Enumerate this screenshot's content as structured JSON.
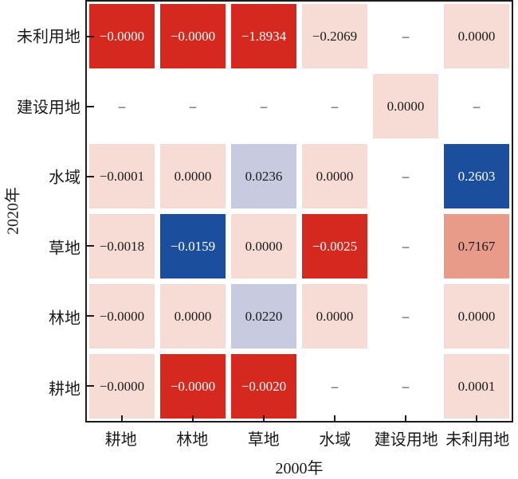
{
  "palette": {
    "strong_red": "#d5281e",
    "light_pink": "#f6dcd4",
    "lavender": "#c8cadf",
    "dark_blue": "#1b4f9e",
    "salmon": "#e99b8a",
    "empty_white": "#ffffff",
    "text_dark": "#1a1a1a",
    "text_light": "#ffffff",
    "axis_line": "#1c1c1c"
  },
  "chart_data": {
    "type": "heatmap",
    "title": "",
    "xlabel": "2000年",
    "ylabel": "2020年",
    "x_categories": [
      "耕地",
      "林地",
      "草地",
      "水域",
      "建设用地",
      "未利用地"
    ],
    "y_categories_top_to_bottom": [
      "未利用地",
      "建设用地",
      "水域",
      "草地",
      "林地",
      "耕地"
    ],
    "missing_marker": "–",
    "grid": false,
    "values": [
      [
        -0.0,
        -0.0,
        -1.8934,
        -0.2069,
        null,
        0.0
      ],
      [
        null,
        null,
        null,
        null,
        0.0,
        null
      ],
      [
        -0.0001,
        0.0,
        0.0236,
        0.0,
        null,
        0.2603
      ],
      [
        -0.0018,
        -0.0159,
        0.0,
        -0.0025,
        null,
        0.7167
      ],
      [
        -0.0,
        0.0,
        0.022,
        0.0,
        null,
        0.0
      ],
      [
        -0.0,
        -0.0,
        -0.002,
        null,
        null,
        0.0001
      ]
    ],
    "cell_labels": [
      [
        "−0.0000",
        "−0.0000",
        "−1.8934",
        "−0.2069",
        "–",
        "0.0000"
      ],
      [
        "–",
        "–",
        "–",
        "–",
        "0.0000",
        "–"
      ],
      [
        "−0.0001",
        "0.0000",
        "0.0236",
        "0.0000",
        "–",
        "0.2603"
      ],
      [
        "−0.0018",
        "−0.0159",
        "0.0000",
        "−0.0025",
        "–",
        "0.7167"
      ],
      [
        "−0.0000",
        "0.0000",
        "0.0220",
        "0.0000",
        "–",
        "0.0000"
      ],
      [
        "−0.0000",
        "−0.0000",
        "−0.0020",
        "–",
        "–",
        "0.0001"
      ]
    ],
    "cell_colors": [
      [
        "#d5281e",
        "#d5281e",
        "#d5281e",
        "#f6dcd4",
        "#ffffff",
        "#f6dcd4"
      ],
      [
        "#ffffff",
        "#ffffff",
        "#ffffff",
        "#ffffff",
        "#f6dcd4",
        "#ffffff"
      ],
      [
        "#f6dcd4",
        "#f6dcd4",
        "#c8cadf",
        "#f6dcd4",
        "#ffffff",
        "#1b4f9e"
      ],
      [
        "#f6dcd4",
        "#1b4f9e",
        "#f6dcd4",
        "#d5281e",
        "#ffffff",
        "#e99b8a"
      ],
      [
        "#f6dcd4",
        "#f6dcd4",
        "#c8cadf",
        "#f6dcd4",
        "#ffffff",
        "#f6dcd4"
      ],
      [
        "#f6dcd4",
        "#d5281e",
        "#d5281e",
        "#ffffff",
        "#ffffff",
        "#f6dcd4"
      ]
    ],
    "text_colors": [
      [
        "#ffffff",
        "#ffffff",
        "#ffffff",
        "#1a1a1a",
        "#1a1a1a",
        "#1a1a1a"
      ],
      [
        "#1a1a1a",
        "#1a1a1a",
        "#1a1a1a",
        "#1a1a1a",
        "#1a1a1a",
        "#1a1a1a"
      ],
      [
        "#1a1a1a",
        "#1a1a1a",
        "#1a1a1a",
        "#1a1a1a",
        "#1a1a1a",
        "#ffffff"
      ],
      [
        "#1a1a1a",
        "#ffffff",
        "#1a1a1a",
        "#ffffff",
        "#1a1a1a",
        "#1a1a1a"
      ],
      [
        "#1a1a1a",
        "#1a1a1a",
        "#1a1a1a",
        "#1a1a1a",
        "#1a1a1a",
        "#1a1a1a"
      ],
      [
        "#1a1a1a",
        "#ffffff",
        "#ffffff",
        "#1a1a1a",
        "#1a1a1a",
        "#f6dcd4"
      ]
    ]
  }
}
